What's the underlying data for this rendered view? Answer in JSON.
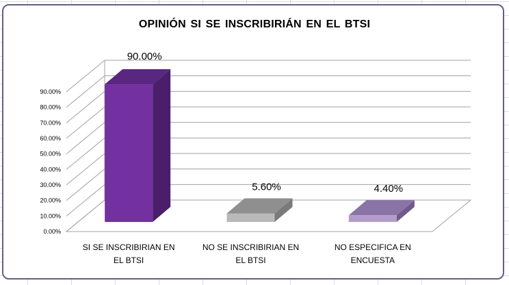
{
  "chart_data": {
    "type": "bar",
    "title": "OPINIÓN SI SE INSCRIBIRIÁN  EN EL  BTSI",
    "categories": [
      "SI SE INSCRIBIRIAN EN EL BTSI",
      "NO SE INSCRIBIRIAN EN EL BTSI",
      "NO ESPECIFICA EN ENCUESTA"
    ],
    "category_lines": [
      [
        "SI SE INSCRIBIRIAN EN",
        "EL BTSI"
      ],
      [
        "NO SE INSCRIBIRIAN EN",
        "EL BTSI"
      ],
      [
        "NO ESPECIFICA EN",
        "ENCUESTA"
      ]
    ],
    "values": [
      90.0,
      5.6,
      4.4
    ],
    "data_labels": [
      "90.00%",
      "5.60%",
      "4.40%"
    ],
    "y_ticks": [
      "0.00%",
      "10.00%",
      "20.00%",
      "30.00%",
      "40.00%",
      "50.00%",
      "60.00%",
      "70.00%",
      "80.00%",
      "90.00%"
    ],
    "ylim": [
      0,
      90
    ],
    "grid": true,
    "legend": "none",
    "style": "3d-column",
    "colors": [
      {
        "front": "#7230a0",
        "side": "#4b1e6b",
        "top": "#5a2780"
      },
      {
        "front": "#b9b9b9",
        "side": "#7a7a7a",
        "top": "#8f8f8f"
      },
      {
        "front": "#b39ccc",
        "side": "#6f5a88",
        "top": "#8a74a6"
      }
    ]
  }
}
